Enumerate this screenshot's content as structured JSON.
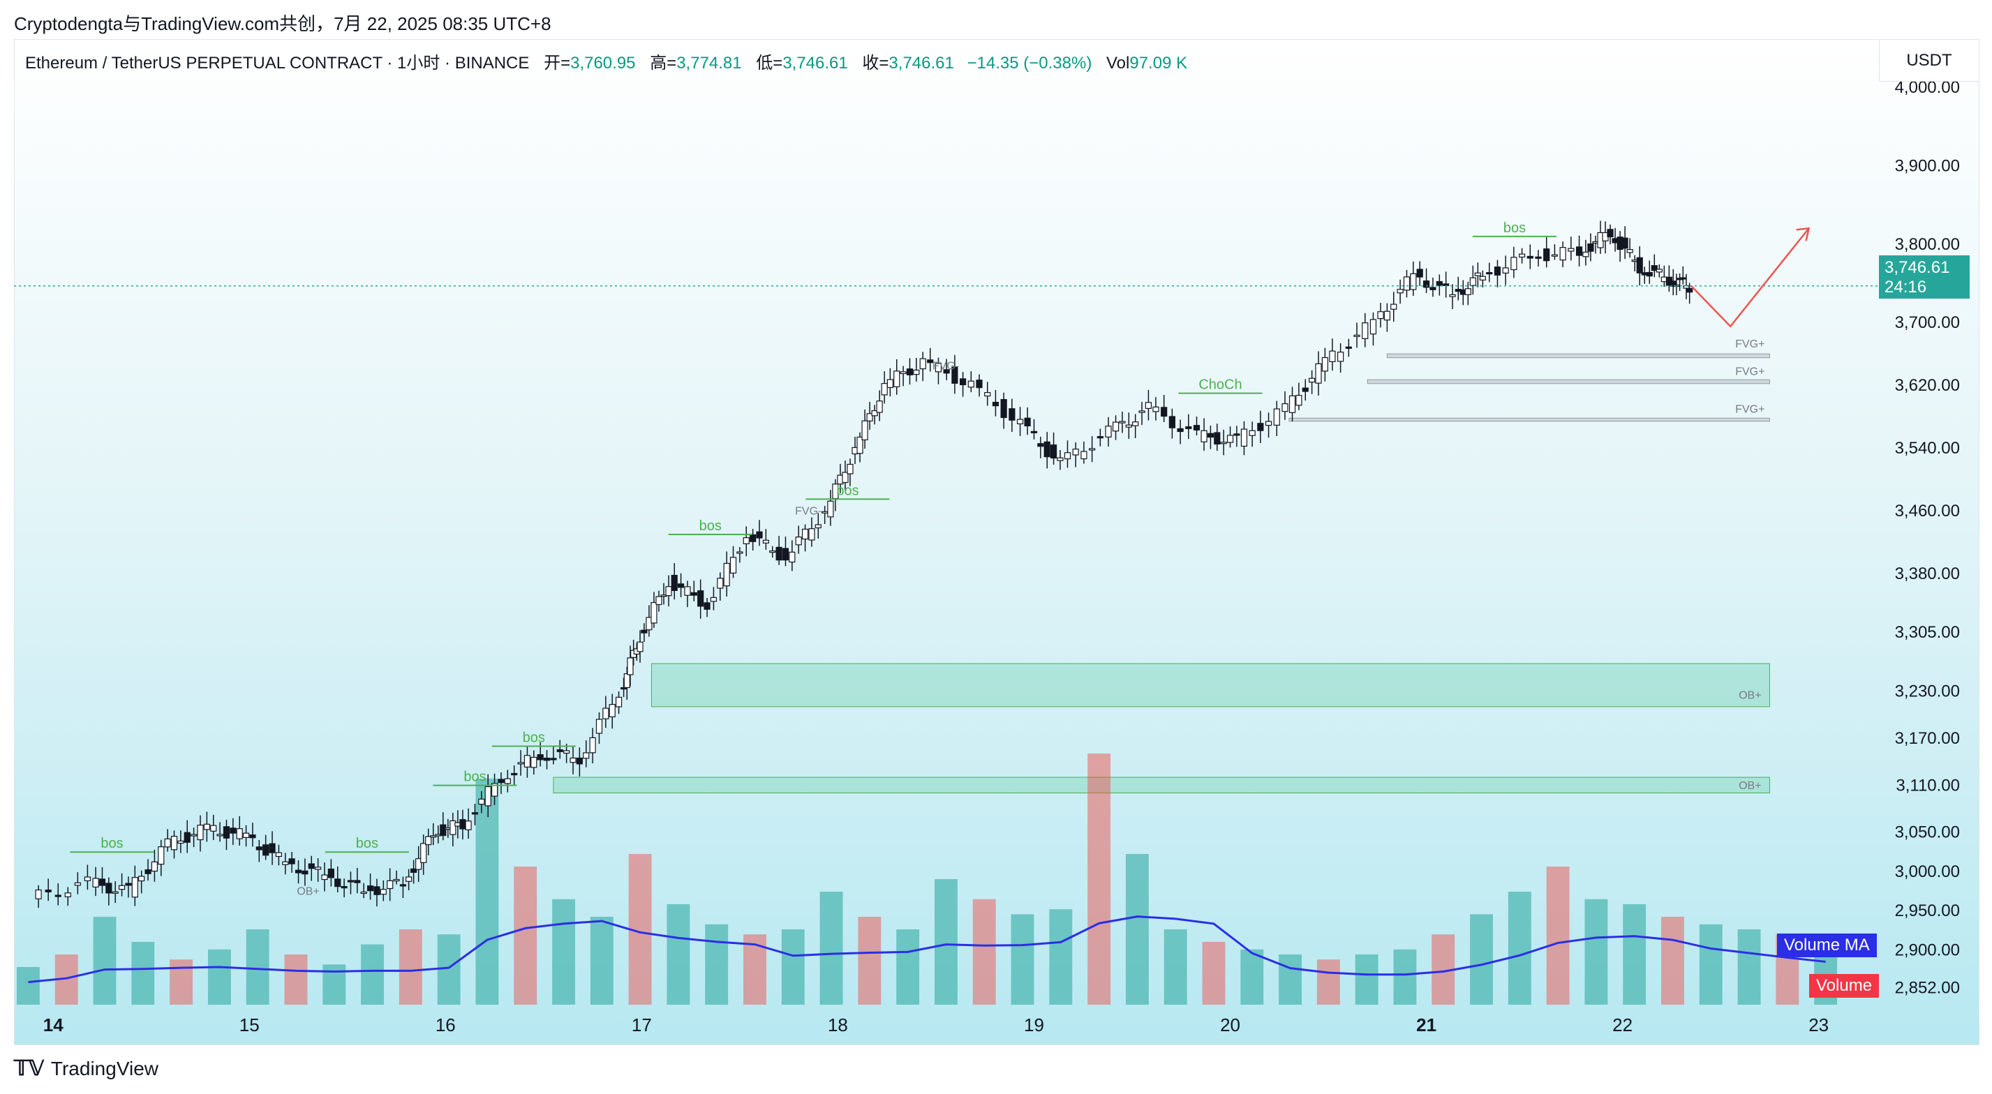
{
  "caption": "Cryptodengta与TradingView.com共创，7月 22, 2025 08:35 UTC+8",
  "legend": {
    "symbol": "Ethereum / TetherUS PERPETUAL CONTRACT · 1小时 · BINANCE",
    "open_label": "开=",
    "open": "3,760.95",
    "high_label": "高=",
    "high": "3,774.81",
    "low_label": "低=",
    "low": "3,746.61",
    "close_label": "收=",
    "close": "3,746.61",
    "change": "−14.35 (−0.38%)",
    "vol_label": "Vol",
    "vol": "97.09 K"
  },
  "currency": "USDT",
  "price_tag": {
    "price": "3,746.61",
    "countdown": "24:16"
  },
  "indicator_labels": {
    "volume_ma": "Volume MA",
    "volume": "Volume"
  },
  "brand": {
    "icon": "tradingview-logo-icon",
    "text": "TradingView"
  },
  "colors": {
    "up": "#26a69a",
    "down": "#ef5350",
    "candle_up": "#ffffff",
    "candle_down": "#131722",
    "structure": "#4caf50",
    "volume_ma": "#2a2ee6"
  },
  "chart_data": {
    "type": "candlestick",
    "x_axis_ticks": [
      "14",
      "15",
      "16",
      "17",
      "18",
      "19",
      "20",
      "21",
      "22",
      "23"
    ],
    "y_axis_ticks": [
      "4,000.00",
      "3,900.00",
      "3,800.00",
      "3,700.00",
      "3,620.00",
      "3,540.00",
      "3,460.00",
      "3,380.00",
      "3,305.00",
      "3,230.00",
      "3,170.00",
      "3,110.00",
      "3,050.00",
      "3,000.00",
      "2,950.00",
      "2,900.00",
      "2,852.00"
    ],
    "ylim": [
      2830,
      4040
    ],
    "last_price": 3746.61,
    "close_path": [
      {
        "day": 13.9,
        "close": 2965
      },
      {
        "day": 14.2,
        "close": 2985
      },
      {
        "day": 14.4,
        "close": 2975
      },
      {
        "day": 14.6,
        "close": 3035
      },
      {
        "day": 14.8,
        "close": 3055
      },
      {
        "day": 15.0,
        "close": 3045
      },
      {
        "day": 15.2,
        "close": 3010
      },
      {
        "day": 15.4,
        "close": 2995
      },
      {
        "day": 15.6,
        "close": 2975
      },
      {
        "day": 15.8,
        "close": 2985
      },
      {
        "day": 15.95,
        "close": 3050
      },
      {
        "day": 16.1,
        "close": 3060
      },
      {
        "day": 16.3,
        "close": 3120
      },
      {
        "day": 16.5,
        "close": 3150
      },
      {
        "day": 16.7,
        "close": 3145
      },
      {
        "day": 16.9,
        "close": 3230
      },
      {
        "day": 17.0,
        "close": 3300
      },
      {
        "day": 17.15,
        "close": 3370
      },
      {
        "day": 17.35,
        "close": 3340
      },
      {
        "day": 17.55,
        "close": 3430
      },
      {
        "day": 17.75,
        "close": 3400
      },
      {
        "day": 17.95,
        "close": 3460
      },
      {
        "day": 18.1,
        "close": 3540
      },
      {
        "day": 18.25,
        "close": 3620
      },
      {
        "day": 18.45,
        "close": 3650
      },
      {
        "day": 18.7,
        "close": 3620
      },
      {
        "day": 18.95,
        "close": 3570
      },
      {
        "day": 19.15,
        "close": 3520
      },
      {
        "day": 19.4,
        "close": 3560
      },
      {
        "day": 19.6,
        "close": 3590
      },
      {
        "day": 19.85,
        "close": 3555
      },
      {
        "day": 20.05,
        "close": 3550
      },
      {
        "day": 20.3,
        "close": 3590
      },
      {
        "day": 20.5,
        "close": 3650
      },
      {
        "day": 20.75,
        "close": 3700
      },
      {
        "day": 20.95,
        "close": 3760
      },
      {
        "day": 21.15,
        "close": 3735
      },
      {
        "day": 21.3,
        "close": 3760
      },
      {
        "day": 21.55,
        "close": 3785
      },
      {
        "day": 21.8,
        "close": 3790
      },
      {
        "day": 21.95,
        "close": 3815
      },
      {
        "day": 22.1,
        "close": 3770
      },
      {
        "day": 22.25,
        "close": 3755
      },
      {
        "day": 22.35,
        "close": 3746.61
      }
    ],
    "volume_heights": [
      0.15,
      0.2,
      0.35,
      0.25,
      0.18,
      0.22,
      0.3,
      0.2,
      0.16,
      0.24,
      0.3,
      0.28,
      0.9,
      0.55,
      0.42,
      0.35,
      0.6,
      0.4,
      0.32,
      0.28,
      0.3,
      0.45,
      0.35,
      0.3,
      0.5,
      0.42,
      0.36,
      0.38,
      1.0,
      0.6,
      0.3,
      0.25,
      0.22,
      0.2,
      0.18,
      0.2,
      0.22,
      0.28,
      0.36,
      0.45,
      0.55,
      0.42,
      0.4,
      0.35,
      0.32,
      0.3,
      0.28,
      0.24
    ],
    "annotations": [
      {
        "text": "bos",
        "day": 14.3,
        "price": 3030
      },
      {
        "text": "bos",
        "day": 15.6,
        "price": 3030
      },
      {
        "text": "bos",
        "day": 16.15,
        "price": 3115
      },
      {
        "text": "bos",
        "day": 16.45,
        "price": 3165
      },
      {
        "text": "bos",
        "day": 17.35,
        "price": 3435
      },
      {
        "text": "bos",
        "day": 18.05,
        "price": 3480
      },
      {
        "text": "ChoCh",
        "day": 19.95,
        "price": 3615
      },
      {
        "text": "bos",
        "day": 21.45,
        "price": 3815
      },
      {
        "text": "FVG+",
        "day": 22.65,
        "price": 3668
      },
      {
        "text": "FVG+",
        "day": 22.65,
        "price": 3633
      },
      {
        "text": "FVG+",
        "day": 22.65,
        "price": 3585
      },
      {
        "text": "OB+",
        "day": 22.65,
        "price": 3220
      },
      {
        "text": "OB+",
        "day": 22.65,
        "price": 3105
      },
      {
        "text": "FVG-",
        "day": 18.55,
        "price": 3640
      },
      {
        "text": "FVG-",
        "day": 17.85,
        "price": 3455
      },
      {
        "text": "OB+",
        "day": 15.3,
        "price": 2970
      }
    ],
    "zones": [
      {
        "kind": "OB+",
        "from_day": 17.05,
        "to_day": 22.75,
        "top": 3265,
        "bottom": 3210
      },
      {
        "kind": "OB+",
        "from_day": 16.55,
        "to_day": 22.75,
        "top": 3120,
        "bottom": 3100
      },
      {
        "kind": "FVG+",
        "from_day": 20.8,
        "to_day": 22.75,
        "top": 3660,
        "bottom": 3655
      },
      {
        "kind": "FVG+",
        "from_day": 20.7,
        "to_day": 22.75,
        "top": 3627,
        "bottom": 3622
      },
      {
        "kind": "FVG+",
        "from_day": 20.3,
        "to_day": 22.75,
        "top": 3578,
        "bottom": 3574
      }
    ]
  }
}
